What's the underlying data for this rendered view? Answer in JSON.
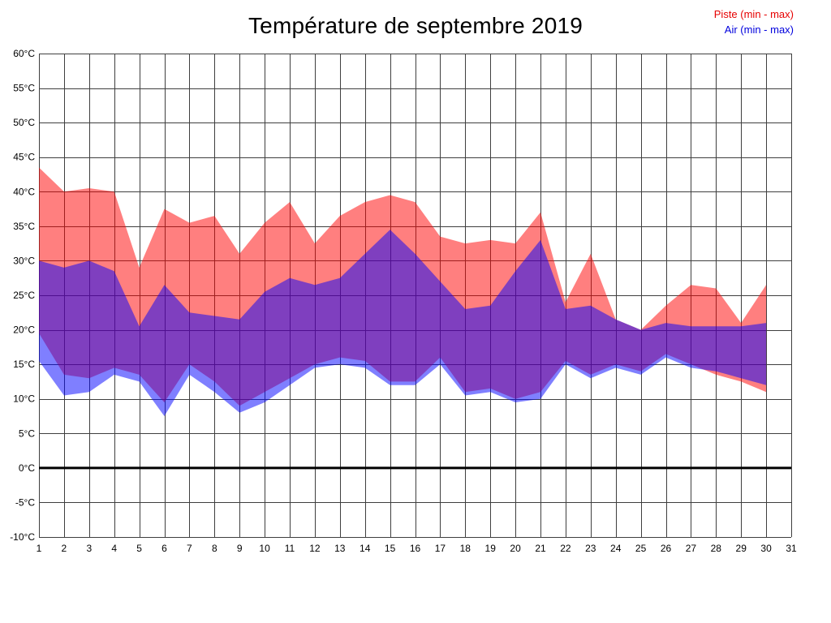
{
  "chart_data": {
    "type": "area",
    "title": "Température de septembre 2019",
    "xlabel": "",
    "ylabel": "",
    "xlim": [
      1,
      31
    ],
    "ylim": [
      -10,
      60
    ],
    "xticks": [
      1,
      2,
      3,
      4,
      5,
      6,
      7,
      8,
      9,
      10,
      11,
      12,
      13,
      14,
      15,
      16,
      17,
      18,
      19,
      20,
      21,
      22,
      23,
      24,
      25,
      26,
      27,
      28,
      29,
      30,
      31
    ],
    "yticks": [
      60,
      55,
      50,
      45,
      40,
      35,
      30,
      25,
      20,
      15,
      10,
      5,
      0,
      -5,
      -10
    ],
    "ytick_suffix": "°C",
    "grid": true,
    "zero_line_at": 0,
    "legend_position": "top-right",
    "x": [
      1,
      2,
      3,
      4,
      5,
      6,
      7,
      8,
      9,
      10,
      11,
      12,
      13,
      14,
      15,
      16,
      17,
      18,
      19,
      20,
      21,
      22,
      23,
      24,
      25,
      26,
      27,
      28,
      29,
      30
    ],
    "series": [
      {
        "name": "Piste max",
        "color": "#ff0000",
        "values": [
          43.5,
          40,
          40.5,
          40,
          29,
          37.5,
          35.5,
          36.5,
          31,
          35.5,
          38.5,
          32.5,
          36.5,
          38.5,
          39.5,
          38.5,
          33.5,
          32.5,
          33,
          32.5,
          37,
          24,
          31,
          21.5,
          20,
          23.5,
          26.5,
          26,
          21,
          26.5
        ]
      },
      {
        "name": "Piste min",
        "color": "#ff0000",
        "values": [
          19.5,
          13.5,
          13,
          14.5,
          13.5,
          9.5,
          15,
          12.5,
          9,
          11,
          13,
          15,
          16,
          15.5,
          12.5,
          12.5,
          16,
          11,
          11.5,
          10,
          11,
          15.5,
          13.5,
          15,
          14,
          16.5,
          15,
          13.5,
          12.5,
          11
        ]
      },
      {
        "name": "Air max",
        "color": "#0000ff",
        "values": [
          30,
          29,
          30,
          28.5,
          20.5,
          26.5,
          22.5,
          22,
          21.5,
          25.5,
          27.5,
          26.5,
          27.5,
          31,
          34.5,
          31,
          27,
          23,
          23.5,
          28.5,
          33,
          23,
          23.5,
          21.5,
          20,
          21,
          20.5,
          20.5,
          20.5,
          21
        ]
      },
      {
        "name": "Air min",
        "color": "#0000ff",
        "values": [
          15.5,
          10.5,
          11,
          13.5,
          12.5,
          7.5,
          13.5,
          11,
          8,
          9.5,
          12,
          14.5,
          15,
          14.5,
          12,
          12,
          15,
          10.5,
          11,
          9.5,
          10,
          15,
          13,
          14.5,
          13.5,
          16,
          14.5,
          14,
          13,
          12
        ]
      }
    ],
    "bands": [
      {
        "label": "Piste (min - max)",
        "upper": 0,
        "lower": 1,
        "fill": "#ff0000",
        "opacity": 0.5
      },
      {
        "label": "Air (min - max)",
        "upper": 2,
        "lower": 3,
        "fill": "#0000ff",
        "opacity": 0.5
      }
    ],
    "legend": [
      {
        "label": "Piste (min - max)",
        "color": "#e60000"
      },
      {
        "label": "Air (min - max)",
        "color": "#0000dd"
      }
    ],
    "grid_color": "#3f3f3f",
    "zero_line_color": "#000000"
  }
}
